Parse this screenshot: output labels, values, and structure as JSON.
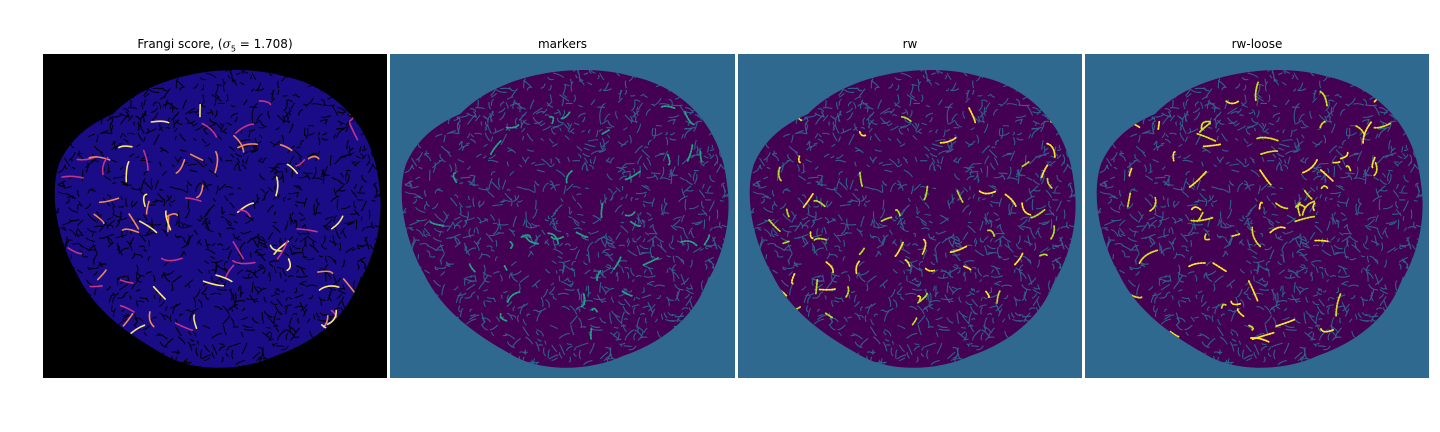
{
  "figure": {
    "panels": [
      {
        "title_prefix": "Frangi score, (",
        "title_sigma": "σ",
        "title_sub": "5",
        "title_rest": " = 1.708)",
        "background": "#000000",
        "tissue_color": "#1a0c86",
        "texture_color": "#000000",
        "highlight_colors": [
          "#c2338a",
          "#f3875a",
          "#fbe874"
        ]
      },
      {
        "title": "markers",
        "background": "#2f6990",
        "tissue_color": "#440154",
        "texture_color": "#2f6990",
        "highlight_colors": [
          "#21a386"
        ]
      },
      {
        "title": "rw",
        "background": "#2f6990",
        "tissue_color": "#440154",
        "texture_color": "#2f6990",
        "highlight_colors": [
          "#b5de2b",
          "#fde725"
        ]
      },
      {
        "title": "rw-loose",
        "background": "#2f6990",
        "tissue_color": "#440154",
        "texture_color": "#2f6990",
        "highlight_colors": [
          "#d8e219",
          "#fde725"
        ]
      }
    ]
  }
}
